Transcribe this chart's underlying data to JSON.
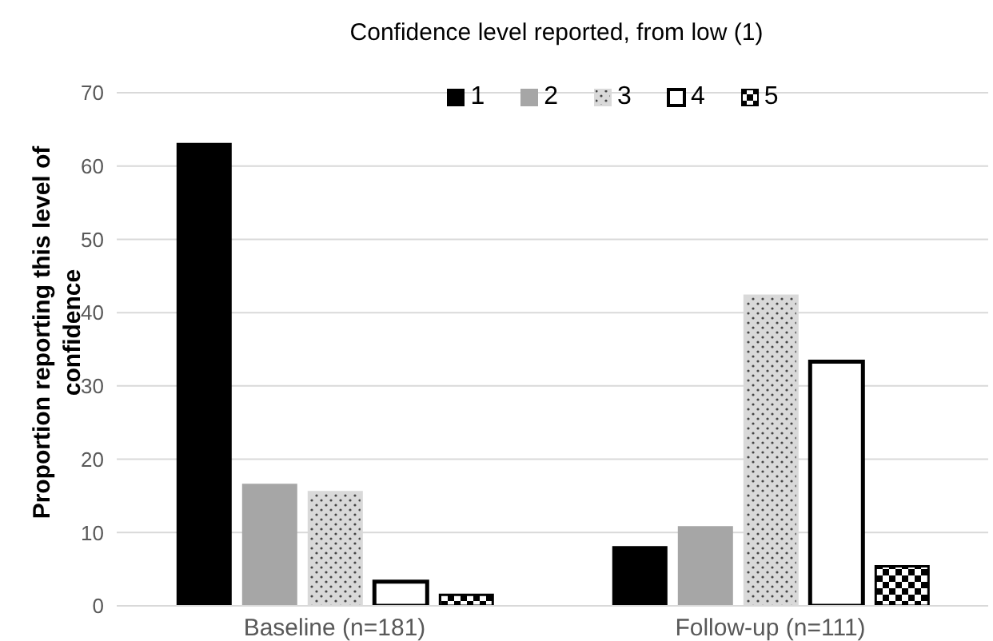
{
  "chart_data": {
    "type": "bar",
    "title": "Confidence level reported, from low (1)",
    "ylabel": "Proportion reporting this level of confidence",
    "categories": [
      "Baseline (n=181)",
      "Follow-up (n=111)"
    ],
    "series": [
      {
        "name": "1",
        "color": "#000000",
        "values": [
          63,
          8
        ]
      },
      {
        "name": "2",
        "color": "#a6a6a6",
        "values": [
          16.5,
          10.7
        ]
      },
      {
        "name": "3",
        "color": "#d9d9d9",
        "values": [
          15.5,
          42.3
        ]
      },
      {
        "name": "4",
        "color": "#ffffff",
        "values": [
          3.3,
          33.3
        ]
      },
      {
        "name": "5",
        "color": "#000000",
        "values": [
          1.5,
          5.4
        ]
      }
    ],
    "ylim": [
      0,
      70
    ],
    "yticks": [
      0,
      10,
      20,
      30,
      40,
      50,
      60,
      70
    ],
    "grid": "y",
    "legend": "top"
  }
}
